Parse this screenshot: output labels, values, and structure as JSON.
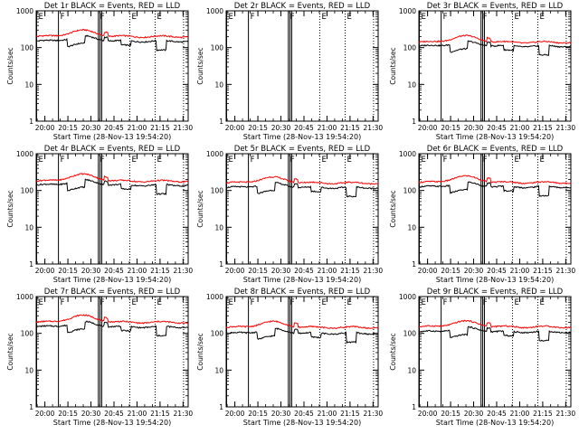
{
  "figure": {
    "start_label": "Start Time (28-Nov-13 19:54:20)",
    "ylabel": "Counts/sec",
    "x_tick_labels": [
      "20:00",
      "20:15",
      "20:30",
      "20:45",
      "21:00",
      "21:15",
      "21:30"
    ],
    "x_tick_values_min": [
      5.67,
      20.67,
      35.67,
      50.67,
      65.67,
      80.67,
      95.67
    ],
    "xlim_min": [
      0,
      99
    ],
    "ylim": [
      1,
      1000
    ],
    "y_tick_labels": [
      "1",
      "10",
      "100",
      "1000"
    ],
    "y_tick_values": [
      1,
      10,
      100,
      1000
    ],
    "event_markers": [
      {
        "label": "E",
        "x_min": 0.3,
        "style": "solid"
      },
      {
        "label": "F",
        "x_min": 14.5,
        "style": "solid"
      },
      {
        "label": "F",
        "x_min": 40.5,
        "style": "solid"
      },
      {
        "label": "",
        "x_min": 41.6,
        "style": "solid"
      },
      {
        "label": "",
        "x_min": 42.7,
        "style": "solid"
      },
      {
        "label": "E",
        "x_min": 61.0,
        "style": "dotted"
      },
      {
        "label": "E",
        "x_min": 77.5,
        "style": "dotted"
      },
      {
        "label": "",
        "x_min": 96.0,
        "style": "dotted"
      }
    ],
    "colors": {
      "events": "#000000",
      "lld": "#ff0000",
      "background": "#ffffff"
    }
  },
  "chart_data": [
    {
      "type": "line",
      "title": "Det 1r BLACK = Events, RED = LLD",
      "xlabel": "Start Time (28-Nov-13 19:54:20)",
      "ylabel": "Counts/sec",
      "ylim": [
        1,
        1000
      ],
      "yscale": "log",
      "series": [
        {
          "name": "Events",
          "color": "#000000",
          "base": 150,
          "dips": true,
          "amp": 0.35
        },
        {
          "name": "LLD",
          "color": "#ff0000",
          "base": 200,
          "amp": 0.45
        }
      ]
    },
    {
      "type": "line",
      "title": "Det 2r BLACK = Events, RED = LLD",
      "xlabel": "Start Time (28-Nov-13 19:54:20)",
      "ylabel": "Counts/sec",
      "ylim": [
        1,
        1000
      ],
      "yscale": "log",
      "series": []
    },
    {
      "type": "line",
      "title": "Det 3r BLACK = Events, RED = LLD",
      "xlabel": "Start Time (28-Nov-13 19:54:20)",
      "ylabel": "Counts/sec",
      "ylim": [
        1,
        1000
      ],
      "yscale": "log",
      "series": [
        {
          "name": "Events",
          "color": "#000000",
          "base": 110,
          "dips": true,
          "amp": 0.3
        },
        {
          "name": "LLD",
          "color": "#ff0000",
          "base": 140,
          "amp": 0.45
        }
      ]
    },
    {
      "type": "line",
      "title": "Det 4r BLACK = Events, RED = LLD",
      "xlabel": "Start Time (28-Nov-13 19:54:20)",
      "ylabel": "Counts/sec",
      "ylim": [
        1,
        1000
      ],
      "yscale": "log",
      "series": [
        {
          "name": "Events",
          "color": "#000000",
          "base": 140,
          "dips": true,
          "amp": 0.35
        },
        {
          "name": "LLD",
          "color": "#ff0000",
          "base": 180,
          "amp": 0.5
        }
      ]
    },
    {
      "type": "line",
      "title": "Det 5r BLACK = Events, RED = LLD",
      "xlabel": "Start Time (28-Nov-13 19:54:20)",
      "ylabel": "Counts/sec",
      "ylim": [
        1,
        1000
      ],
      "yscale": "log",
      "series": [
        {
          "name": "Events",
          "color": "#000000",
          "base": 120,
          "dips": true,
          "amp": 0.3
        },
        {
          "name": "LLD",
          "color": "#ff0000",
          "base": 160,
          "amp": 0.4
        }
      ]
    },
    {
      "type": "line",
      "title": "Det 6r BLACK = Events, RED = LLD",
      "xlabel": "Start Time (28-Nov-13 19:54:20)",
      "ylabel": "Counts/sec",
      "ylim": [
        1,
        1000
      ],
      "yscale": "log",
      "series": [
        {
          "name": "Events",
          "color": "#000000",
          "base": 125,
          "dips": true,
          "amp": 0.3
        },
        {
          "name": "LLD",
          "color": "#ff0000",
          "base": 165,
          "amp": 0.45
        }
      ]
    },
    {
      "type": "line",
      "title": "Det 7r BLACK = Events, RED = LLD",
      "xlabel": "Start Time (28-Nov-13 19:54:20)",
      "ylabel": "Counts/sec",
      "ylim": [
        1,
        1000
      ],
      "yscale": "log",
      "series": [
        {
          "name": "Events",
          "color": "#000000",
          "base": 150,
          "dips": true,
          "amp": 0.35
        },
        {
          "name": "LLD",
          "color": "#ff0000",
          "base": 200,
          "amp": 0.5
        }
      ]
    },
    {
      "type": "line",
      "title": "Det 8r BLACK = Events, RED = LLD",
      "xlabel": "Start Time (28-Nov-13 19:54:20)",
      "ylabel": "Counts/sec",
      "ylim": [
        1,
        1000
      ],
      "yscale": "log",
      "series": [
        {
          "name": "Events",
          "color": "#000000",
          "base": 100,
          "dips": true,
          "amp": 0.3
        },
        {
          "name": "LLD",
          "color": "#ff0000",
          "base": 145,
          "amp": 0.4
        }
      ]
    },
    {
      "type": "line",
      "title": "Det 9r BLACK = Events, RED = LLD",
      "xlabel": "Start Time (28-Nov-13 19:54:20)",
      "ylabel": "Counts/sec",
      "ylim": [
        1,
        1000
      ],
      "yscale": "log",
      "series": [
        {
          "name": "Events",
          "color": "#000000",
          "base": 110,
          "dips": true,
          "amp": 0.3
        },
        {
          "name": "LLD",
          "color": "#ff0000",
          "base": 150,
          "amp": 0.4
        }
      ]
    }
  ]
}
